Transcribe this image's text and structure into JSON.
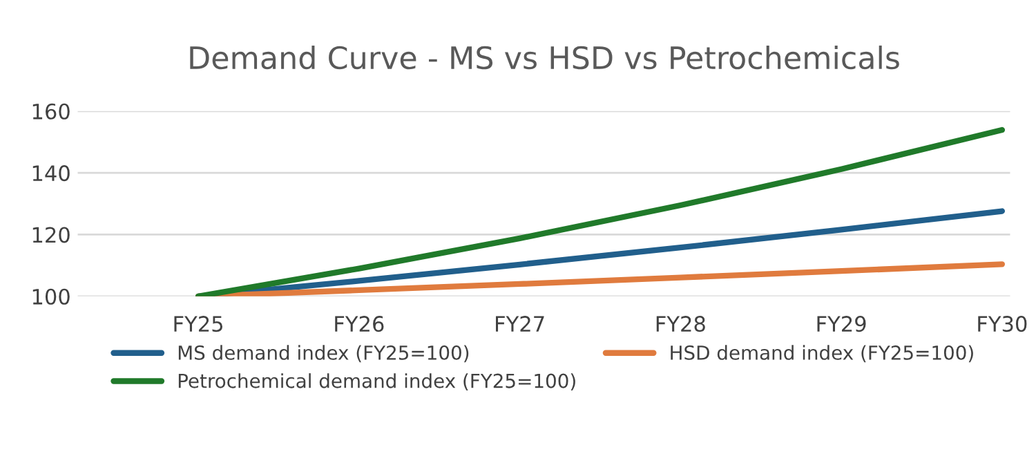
{
  "chart_data": {
    "type": "line",
    "title": "Demand Curve - MS vs HSD vs Petrochemicals",
    "categories": [
      "FY25",
      "FY26",
      "FY27",
      "FY28",
      "FY29",
      "FY30"
    ],
    "series": [
      {
        "name": "MS demand index (FY25=100)",
        "color": "#215f8c",
        "values": [
          100,
          105,
          110.3,
          115.8,
          121.6,
          127.6
        ]
      },
      {
        "name": "HSD demand index (FY25=100)",
        "color": "#e07b3e",
        "values": [
          100,
          102,
          104,
          106.1,
          108.2,
          110.4
        ]
      },
      {
        "name": "Petrochemical demand index (FY25=100)",
        "color": "#207a2a",
        "values": [
          100,
          109,
          118.8,
          129.5,
          141.2,
          153.9
        ]
      }
    ],
    "ylim": [
      100,
      160
    ],
    "yticks": [
      100,
      120,
      140,
      160
    ],
    "grid": "y",
    "legend": "bottom",
    "marker": "none",
    "line_style": "solid"
  }
}
